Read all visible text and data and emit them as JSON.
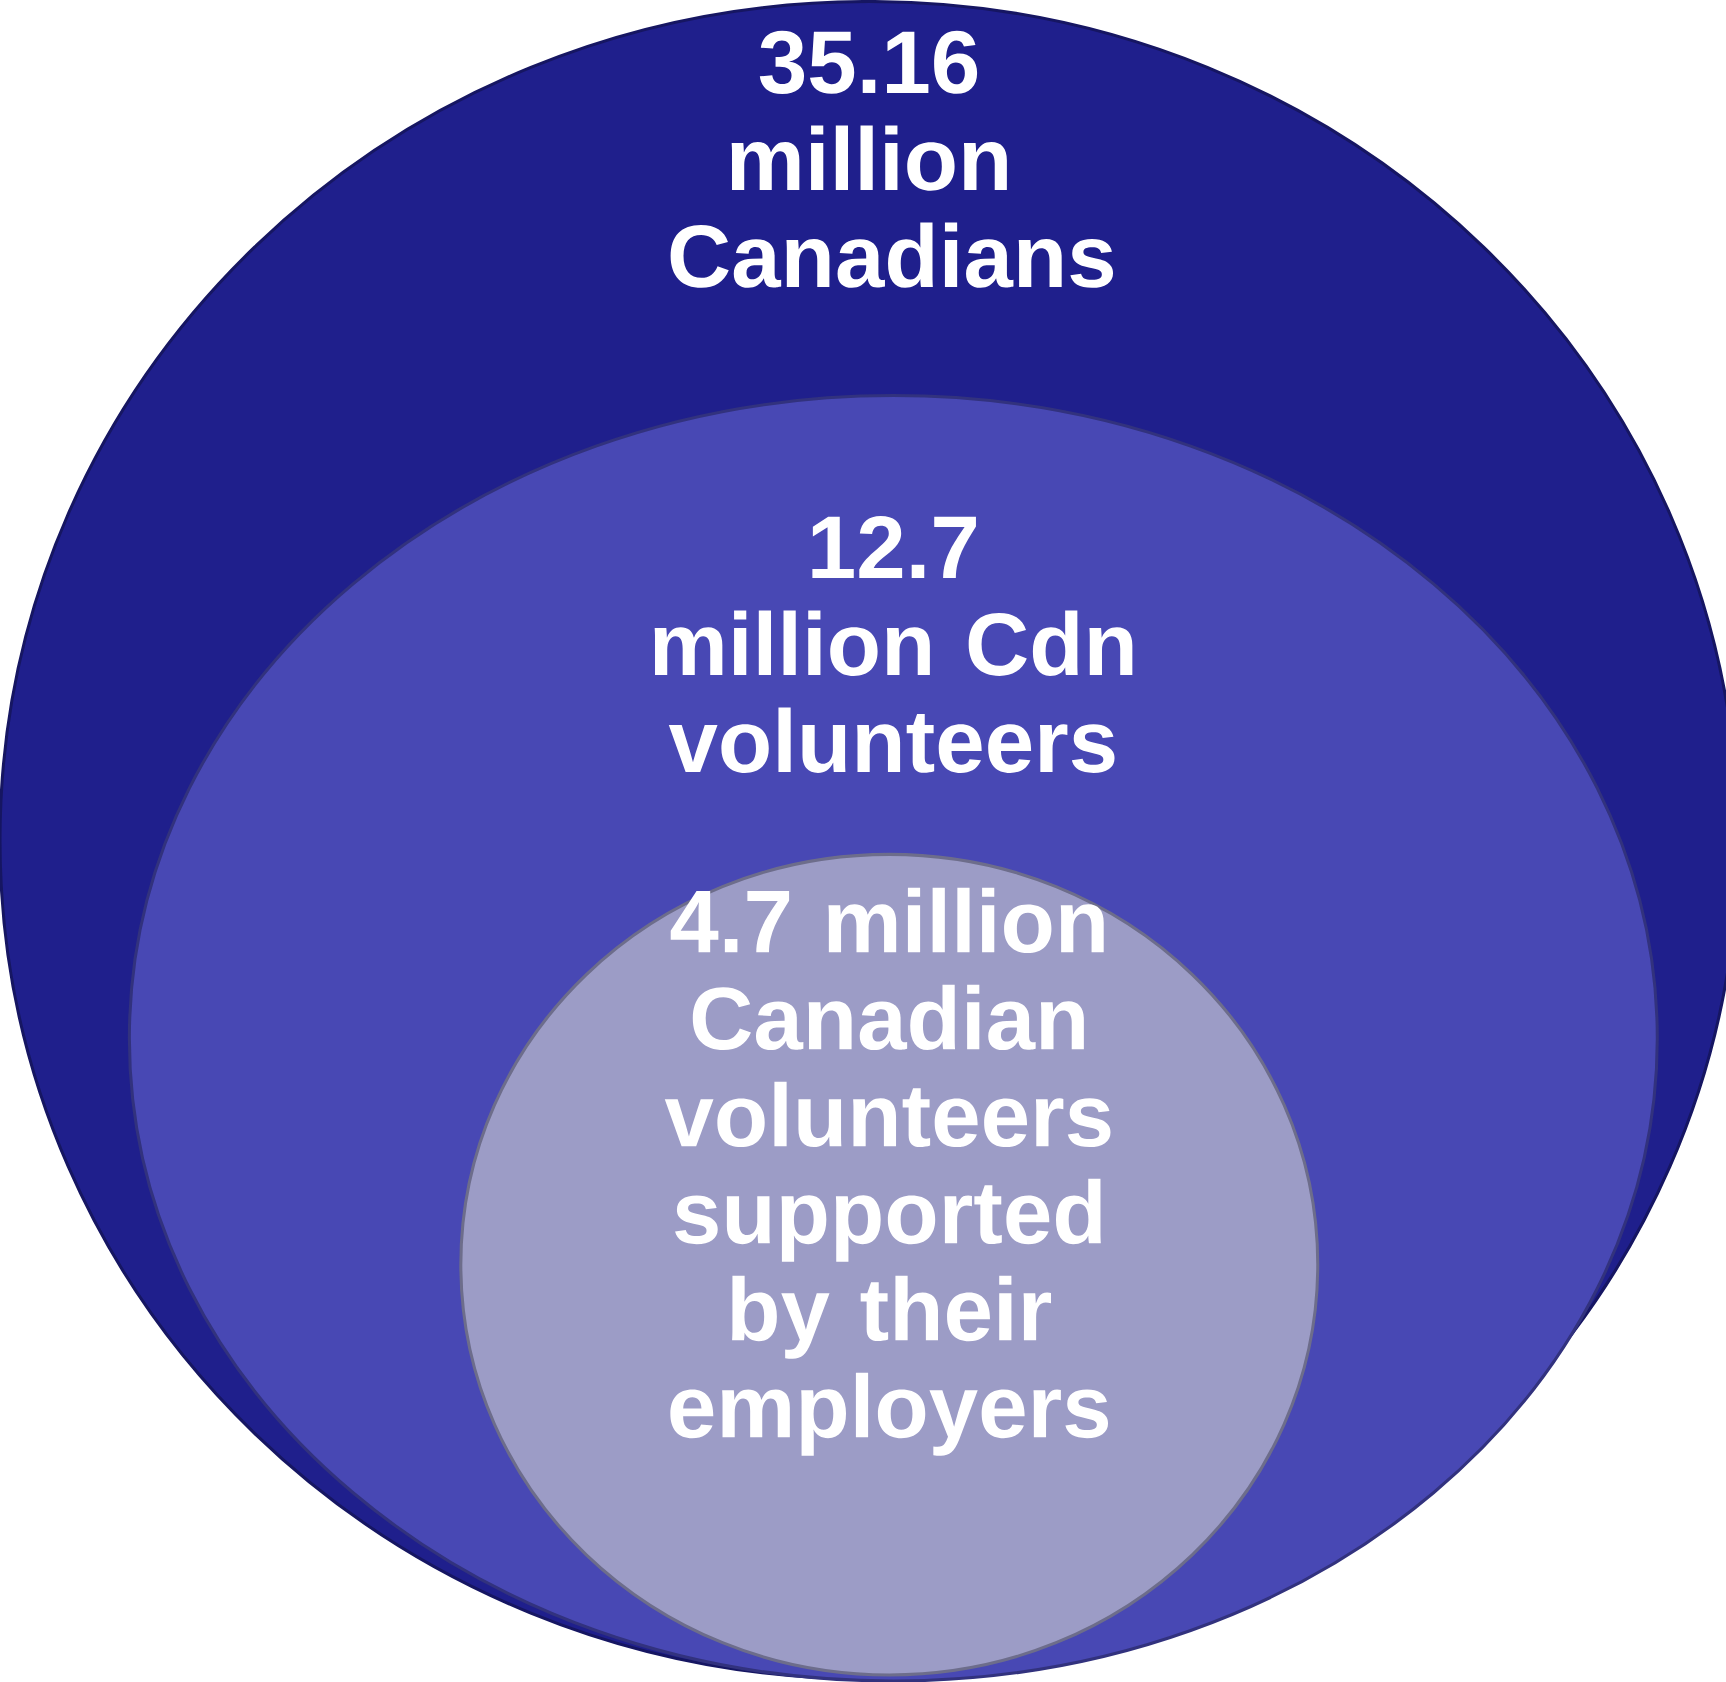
{
  "chart_data": {
    "type": "other",
    "categories": [
      "million Canadians",
      "million Cdn volunteers",
      "million Canadian volunteers supported by their employers"
    ],
    "values": [
      35.16,
      12.7,
      4.7
    ],
    "data_labels": true,
    "colors": [
      "#1f1f8c",
      "#4848b4",
      "#9c9cc6"
    ]
  }
}
